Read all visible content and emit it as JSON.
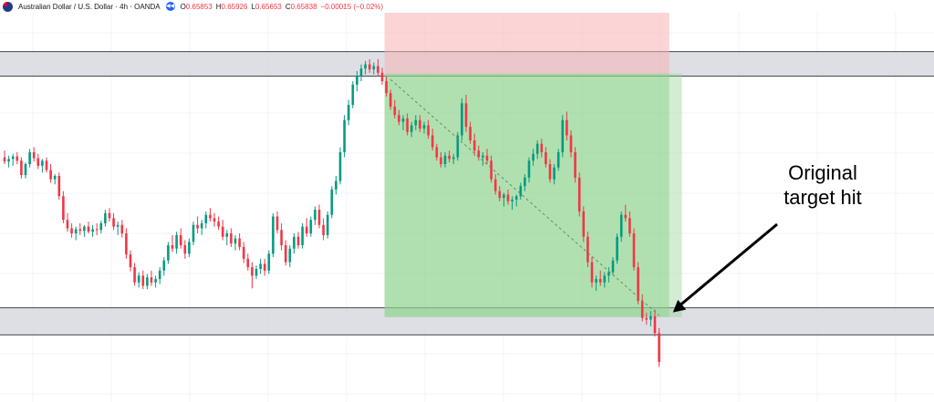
{
  "header": {
    "symbol_title": "Australian Dollar / U.S. Dollar · 4h · OANDA",
    "back_icon": "rewind-icon",
    "open_label": "O",
    "open_value": "0.65853",
    "high_label": "H",
    "high_value": "0.65926",
    "low_label": "L",
    "low_value": "0.65653",
    "close_label": "C",
    "close_value": "0.65838",
    "change": "−0.00015 (−0.02%)",
    "change_color": "#f23645"
  },
  "annotation": {
    "line1": "Original",
    "line2": "target hit"
  },
  "colors": {
    "bull": "#089981",
    "bear": "#f23645",
    "zone_fill": "#d1d4dc",
    "zone_line": "#434651",
    "stop_fill": "#f7b3b3",
    "target_fill": "#8fd38f",
    "grid": "#f0f3fa"
  },
  "chart_data": {
    "type": "candlestick",
    "instrument": "AUD/USD",
    "timeframe": "4h",
    "candles": [
      [
        0.647,
        0.6478,
        0.6462,
        0.6465
      ],
      [
        0.6465,
        0.6472,
        0.6458,
        0.6468
      ],
      [
        0.6468,
        0.6474,
        0.646,
        0.6471
      ],
      [
        0.6471,
        0.6476,
        0.6462,
        0.6466
      ],
      [
        0.6466,
        0.647,
        0.6445,
        0.6449
      ],
      [
        0.6449,
        0.6464,
        0.6445,
        0.6462
      ],
      [
        0.6462,
        0.648,
        0.6458,
        0.6476
      ],
      [
        0.6476,
        0.6482,
        0.6465,
        0.6469
      ],
      [
        0.6469,
        0.6474,
        0.6456,
        0.646
      ],
      [
        0.646,
        0.6468,
        0.6452,
        0.6466
      ],
      [
        0.6466,
        0.647,
        0.6452,
        0.6455
      ],
      [
        0.6455,
        0.6462,
        0.644,
        0.6444
      ],
      [
        0.6444,
        0.645,
        0.6438,
        0.6448
      ],
      [
        0.6448,
        0.6452,
        0.642,
        0.6424
      ],
      [
        0.6424,
        0.643,
        0.6392,
        0.6396
      ],
      [
        0.6396,
        0.6404,
        0.6382,
        0.6386
      ],
      [
        0.6386,
        0.6392,
        0.6375,
        0.638
      ],
      [
        0.638,
        0.6388,
        0.6372,
        0.6385
      ],
      [
        0.6385,
        0.6392,
        0.6378,
        0.6383
      ],
      [
        0.6383,
        0.639,
        0.6376,
        0.6388
      ],
      [
        0.6388,
        0.6394,
        0.638,
        0.6382
      ],
      [
        0.6382,
        0.639,
        0.6376,
        0.6385
      ],
      [
        0.6385,
        0.6392,
        0.6378,
        0.6384
      ],
      [
        0.6384,
        0.6395,
        0.638,
        0.6392
      ],
      [
        0.6392,
        0.6408,
        0.6388,
        0.6404
      ],
      [
        0.6404,
        0.641,
        0.6394,
        0.6398
      ],
      [
        0.6398,
        0.6404,
        0.6384,
        0.6388
      ],
      [
        0.6388,
        0.6394,
        0.6378,
        0.639
      ],
      [
        0.639,
        0.6396,
        0.6375,
        0.638
      ],
      [
        0.638,
        0.6386,
        0.635,
        0.6355
      ],
      [
        0.6355,
        0.636,
        0.6335,
        0.634
      ],
      [
        0.634,
        0.6345,
        0.6318,
        0.6322
      ],
      [
        0.6322,
        0.6334,
        0.6316,
        0.633
      ],
      [
        0.633,
        0.6336,
        0.6314,
        0.6318
      ],
      [
        0.6318,
        0.6332,
        0.6314,
        0.6328
      ],
      [
        0.6328,
        0.6336,
        0.6318,
        0.6322
      ],
      [
        0.6322,
        0.633,
        0.6316,
        0.6326
      ],
      [
        0.6326,
        0.634,
        0.632,
        0.6336
      ],
      [
        0.6336,
        0.6352,
        0.633,
        0.6348
      ],
      [
        0.6348,
        0.637,
        0.6344,
        0.6366
      ],
      [
        0.6366,
        0.6378,
        0.6358,
        0.6362
      ],
      [
        0.6362,
        0.6382,
        0.6356,
        0.6378
      ],
      [
        0.6378,
        0.6386,
        0.6362,
        0.6366
      ],
      [
        0.6366,
        0.6372,
        0.635,
        0.6356
      ],
      [
        0.6356,
        0.6374,
        0.6352,
        0.637
      ],
      [
        0.637,
        0.6394,
        0.6366,
        0.639
      ],
      [
        0.639,
        0.64,
        0.638,
        0.6386
      ],
      [
        0.6386,
        0.6396,
        0.6378,
        0.6392
      ],
      [
        0.6392,
        0.6406,
        0.6386,
        0.6402
      ],
      [
        0.6402,
        0.641,
        0.6394,
        0.6398
      ],
      [
        0.6398,
        0.6404,
        0.6388,
        0.6394
      ],
      [
        0.6394,
        0.64,
        0.6384,
        0.6388
      ],
      [
        0.6388,
        0.6396,
        0.6372,
        0.6376
      ],
      [
        0.6376,
        0.6384,
        0.6366,
        0.638
      ],
      [
        0.638,
        0.6386,
        0.6364,
        0.6368
      ],
      [
        0.6368,
        0.6378,
        0.636,
        0.6374
      ],
      [
        0.6374,
        0.638,
        0.636,
        0.6364
      ],
      [
        0.6364,
        0.637,
        0.6345,
        0.635
      ],
      [
        0.635,
        0.6356,
        0.6336,
        0.634
      ],
      [
        0.634,
        0.6346,
        0.6315,
        0.633
      ],
      [
        0.633,
        0.6342,
        0.6326,
        0.6338
      ],
      [
        0.6338,
        0.635,
        0.6332,
        0.6344
      ],
      [
        0.6344,
        0.635,
        0.633,
        0.6336
      ],
      [
        0.6336,
        0.636,
        0.6332,
        0.6356
      ],
      [
        0.6356,
        0.6404,
        0.6352,
        0.64
      ],
      [
        0.64,
        0.6406,
        0.638,
        0.6384
      ],
      [
        0.6384,
        0.6392,
        0.636,
        0.6366
      ],
      [
        0.6366,
        0.6372,
        0.6342,
        0.6346
      ],
      [
        0.6346,
        0.6366,
        0.634,
        0.6362
      ],
      [
        0.6362,
        0.638,
        0.6356,
        0.6376
      ],
      [
        0.6376,
        0.6382,
        0.6362,
        0.6366
      ],
      [
        0.6366,
        0.6392,
        0.6362,
        0.6388
      ],
      [
        0.6388,
        0.6398,
        0.6376,
        0.638
      ],
      [
        0.638,
        0.64,
        0.6376,
        0.6396
      ],
      [
        0.6396,
        0.6412,
        0.639,
        0.6408
      ],
      [
        0.6408,
        0.6414,
        0.6386,
        0.639
      ],
      [
        0.639,
        0.6398,
        0.6372,
        0.6378
      ],
      [
        0.6378,
        0.6406,
        0.6374,
        0.6402
      ],
      [
        0.6402,
        0.6436,
        0.6398,
        0.6432
      ],
      [
        0.6432,
        0.6448,
        0.6426,
        0.6442
      ],
      [
        0.6442,
        0.6482,
        0.6438,
        0.6476
      ],
      [
        0.6476,
        0.652,
        0.647,
        0.6514
      ],
      [
        0.6514,
        0.6538,
        0.6508,
        0.6532
      ],
      [
        0.6532,
        0.656,
        0.6528,
        0.6556
      ],
      [
        0.6556,
        0.6572,
        0.6548,
        0.6566
      ],
      [
        0.6566,
        0.658,
        0.656,
        0.6575
      ],
      [
        0.6575,
        0.6584,
        0.6568,
        0.658
      ],
      [
        0.658,
        0.6586,
        0.657,
        0.6574
      ],
      [
        0.6574,
        0.6582,
        0.6568,
        0.6578
      ],
      [
        0.6578,
        0.6586,
        0.6566,
        0.657
      ],
      [
        0.657,
        0.6576,
        0.6556,
        0.656
      ],
      [
        0.656,
        0.6566,
        0.6542,
        0.6546
      ],
      [
        0.6546,
        0.655,
        0.6526,
        0.653
      ],
      [
        0.653,
        0.6538,
        0.6516,
        0.652
      ],
      [
        0.652,
        0.6526,
        0.6508,
        0.6512
      ],
      [
        0.6512,
        0.652,
        0.6502,
        0.6516
      ],
      [
        0.6516,
        0.6522,
        0.6496,
        0.65
      ],
      [
        0.65,
        0.6512,
        0.6494,
        0.6508
      ],
      [
        0.6508,
        0.652,
        0.6502,
        0.6514
      ],
      [
        0.6514,
        0.652,
        0.65,
        0.6504
      ],
      [
        0.6504,
        0.6512,
        0.6498,
        0.6508
      ],
      [
        0.6508,
        0.6514,
        0.6492,
        0.6496
      ],
      [
        0.6496,
        0.6504,
        0.6478,
        0.6482
      ],
      [
        0.6482,
        0.6486,
        0.6466,
        0.647
      ],
      [
        0.647,
        0.6476,
        0.6458,
        0.6462
      ],
      [
        0.6462,
        0.6476,
        0.6458,
        0.6472
      ],
      [
        0.6472,
        0.6478,
        0.6464,
        0.6468
      ],
      [
        0.6468,
        0.6474,
        0.6462,
        0.647
      ],
      [
        0.647,
        0.65,
        0.6466,
        0.6496
      ],
      [
        0.6496,
        0.654,
        0.649,
        0.6534
      ],
      [
        0.6534,
        0.6544,
        0.65,
        0.6506
      ],
      [
        0.6506,
        0.6512,
        0.6486,
        0.649
      ],
      [
        0.649,
        0.6498,
        0.6472,
        0.6478
      ],
      [
        0.6478,
        0.6484,
        0.6466,
        0.647
      ],
      [
        0.647,
        0.6476,
        0.646,
        0.6472
      ],
      [
        0.6472,
        0.648,
        0.6462,
        0.6466
      ],
      [
        0.6466,
        0.6472,
        0.644,
        0.6444
      ],
      [
        0.6444,
        0.645,
        0.6426,
        0.643
      ],
      [
        0.643,
        0.6436,
        0.6418,
        0.6422
      ],
      [
        0.6422,
        0.6428,
        0.6412,
        0.6426
      ],
      [
        0.6426,
        0.6432,
        0.6414,
        0.6418
      ],
      [
        0.6418,
        0.6424,
        0.6408,
        0.642
      ],
      [
        0.642,
        0.6426,
        0.6412,
        0.6424
      ],
      [
        0.6424,
        0.644,
        0.642,
        0.6436
      ],
      [
        0.6436,
        0.645,
        0.643,
        0.6446
      ],
      [
        0.6446,
        0.647,
        0.644,
        0.6466
      ],
      [
        0.6466,
        0.648,
        0.646,
        0.6474
      ],
      [
        0.6474,
        0.649,
        0.6468,
        0.6486
      ],
      [
        0.6486,
        0.6492,
        0.647,
        0.6476
      ],
      [
        0.6476,
        0.6482,
        0.6458,
        0.6462
      ],
      [
        0.6462,
        0.6468,
        0.644,
        0.6444
      ],
      [
        0.6444,
        0.6462,
        0.6438,
        0.6458
      ],
      [
        0.6458,
        0.648,
        0.6454,
        0.6476
      ],
      [
        0.6476,
        0.652,
        0.647,
        0.6514
      ],
      [
        0.6514,
        0.6524,
        0.649,
        0.6496
      ],
      [
        0.6496,
        0.6502,
        0.647,
        0.6476
      ],
      [
        0.6476,
        0.6482,
        0.644,
        0.6446
      ],
      [
        0.6446,
        0.6452,
        0.64,
        0.6406
      ],
      [
        0.6406,
        0.6412,
        0.637,
        0.6376
      ],
      [
        0.6376,
        0.6382,
        0.634,
        0.6346
      ],
      [
        0.6346,
        0.6352,
        0.6316,
        0.6322
      ],
      [
        0.6322,
        0.633,
        0.6312,
        0.6326
      ],
      [
        0.6326,
        0.6336,
        0.6318,
        0.6322
      ],
      [
        0.6322,
        0.6334,
        0.6316,
        0.633
      ],
      [
        0.633,
        0.634,
        0.6322,
        0.6334
      ],
      [
        0.6334,
        0.6352,
        0.633,
        0.6348
      ],
      [
        0.6348,
        0.638,
        0.6344,
        0.6376
      ],
      [
        0.6376,
        0.6406,
        0.637,
        0.6402
      ],
      [
        0.6402,
        0.6414,
        0.6394,
        0.6398
      ],
      [
        0.6398,
        0.6406,
        0.6376,
        0.638
      ],
      [
        0.638,
        0.6386,
        0.6336,
        0.634
      ],
      [
        0.634,
        0.6346,
        0.6296,
        0.63
      ],
      [
        0.63,
        0.6308,
        0.6276,
        0.628
      ],
      [
        0.628,
        0.6286,
        0.6272,
        0.6278
      ],
      [
        0.6278,
        0.6288,
        0.627,
        0.6282
      ],
      [
        0.6282,
        0.629,
        0.6258,
        0.6262
      ],
      [
        0.6262,
        0.6268,
        0.6222,
        0.6228
      ]
    ],
    "ylim": [
      0.6214,
      0.6641
    ],
    "zones": [
      {
        "name": "resistance",
        "top": 0.6595,
        "bottom": 0.6566
      },
      {
        "name": "support",
        "top": 0.6292,
        "bottom": 0.626
      }
    ],
    "position": {
      "side": "short",
      "stop": 0.6641,
      "entry": 0.6569,
      "target": 0.6281,
      "start_candle": 91,
      "end_candle": 158,
      "extended_target_end_candle": 161
    },
    "projection": {
      "from_candle": 92,
      "from_price": 0.6562,
      "to_candle": 156,
      "to_price": 0.6283
    },
    "annotation_arrow": {
      "from": [
        0.6418,
        "right"
      ],
      "to_candle": 158,
      "to_price": 0.6292
    }
  }
}
